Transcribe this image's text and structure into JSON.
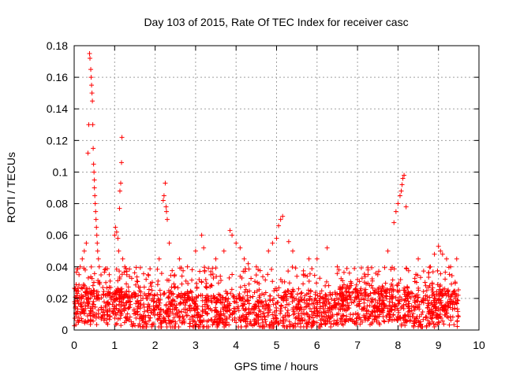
{
  "chart_data": {
    "type": "scatter",
    "title": "Day 103 of 2015, Rate Of TEC Index for receiver casc",
    "xlabel": "GPS time / hours",
    "ylabel": "ROTI / TECUs",
    "xlim": [
      0,
      10
    ],
    "ylim": [
      0,
      0.18
    ],
    "xticks": [
      0,
      1,
      2,
      3,
      4,
      5,
      6,
      7,
      8,
      9,
      10
    ],
    "xtick_labels": [
      "0",
      "1",
      "2",
      "3",
      "4",
      "5",
      "6",
      "7",
      "8",
      "9",
      "10"
    ],
    "yticks": [
      0,
      0.02,
      0.04,
      0.06,
      0.08,
      0.1,
      0.12,
      0.14,
      0.16,
      0.18
    ],
    "ytick_labels": [
      "0",
      "0.02",
      "0.04",
      "0.06",
      "0.08",
      "0.1",
      "0.12",
      "0.14",
      "0.16",
      "0.18"
    ],
    "grid": true,
    "marker": "plus",
    "colors": {
      "points": "#ff0000",
      "grid": "#a0a0a0",
      "axis": "#000000"
    },
    "series": [
      {
        "name": "ROTI",
        "x": [
          0.38,
          0.39,
          0.41,
          0.42,
          0.43,
          0.44,
          0.45,
          0.46,
          0.47,
          0.48,
          0.49,
          0.5,
          0.5,
          0.51,
          0.52,
          0.53,
          0.54,
          0.55,
          0.56,
          0.57,
          0.58,
          0.6,
          0.62,
          0.36,
          0.34,
          0.3,
          0.25,
          0.2,
          0.15,
          0.12,
          1.0,
          1.02,
          1.05,
          1.08,
          1.1,
          1.12,
          1.13,
          1.15,
          1.17,
          1.18,
          1.2,
          1.25,
          1.3,
          2.1,
          2.2,
          2.22,
          2.25,
          2.27,
          2.28,
          2.3,
          2.35,
          2.6,
          2.8,
          3.0,
          3.15,
          3.2,
          3.5,
          3.7,
          3.85,
          3.9,
          4.0,
          4.1,
          4.2,
          4.3,
          4.5,
          4.8,
          4.9,
          5.0,
          5.05,
          5.1,
          5.15,
          5.3,
          5.4,
          5.8,
          6.0,
          6.25,
          6.5,
          6.8,
          7.0,
          7.5,
          7.75,
          7.9,
          7.95,
          8.0,
          8.05,
          8.08,
          8.1,
          8.12,
          8.15,
          8.2,
          8.5,
          8.8,
          8.9,
          9.0,
          9.05,
          9.1,
          9.2,
          9.3,
          9.45
        ],
        "y": [
          0.175,
          0.172,
          0.165,
          0.16,
          0.155,
          0.15,
          0.145,
          0.13,
          0.115,
          0.105,
          0.1,
          0.095,
          0.09,
          0.085,
          0.08,
          0.075,
          0.07,
          0.065,
          0.06,
          0.055,
          0.05,
          0.045,
          0.04,
          0.13,
          0.112,
          0.055,
          0.05,
          0.045,
          0.04,
          0.035,
          0.06,
          0.065,
          0.062,
          0.058,
          0.05,
          0.077,
          0.088,
          0.093,
          0.106,
          0.122,
          0.045,
          0.04,
          0.035,
          0.045,
          0.082,
          0.085,
          0.093,
          0.078,
          0.075,
          0.07,
          0.055,
          0.045,
          0.04,
          0.05,
          0.06,
          0.052,
          0.045,
          0.05,
          0.063,
          0.06,
          0.055,
          0.052,
          0.045,
          0.042,
          0.04,
          0.05,
          0.055,
          0.058,
          0.066,
          0.07,
          0.072,
          0.056,
          0.05,
          0.045,
          0.045,
          0.052,
          0.04,
          0.036,
          0.032,
          0.035,
          0.05,
          0.068,
          0.075,
          0.08,
          0.085,
          0.088,
          0.092,
          0.096,
          0.098,
          0.078,
          0.045,
          0.04,
          0.048,
          0.053,
          0.05,
          0.048,
          0.045,
          0.04,
          0.045
        ]
      }
    ],
    "dense_background": {
      "description": "dense cloud of ROTI values between about 0.002 and 0.03 TECU/s over 0 to 9.5 hours",
      "x_range": [
        0,
        9.5
      ],
      "y_range": [
        0.002,
        0.03
      ]
    }
  }
}
